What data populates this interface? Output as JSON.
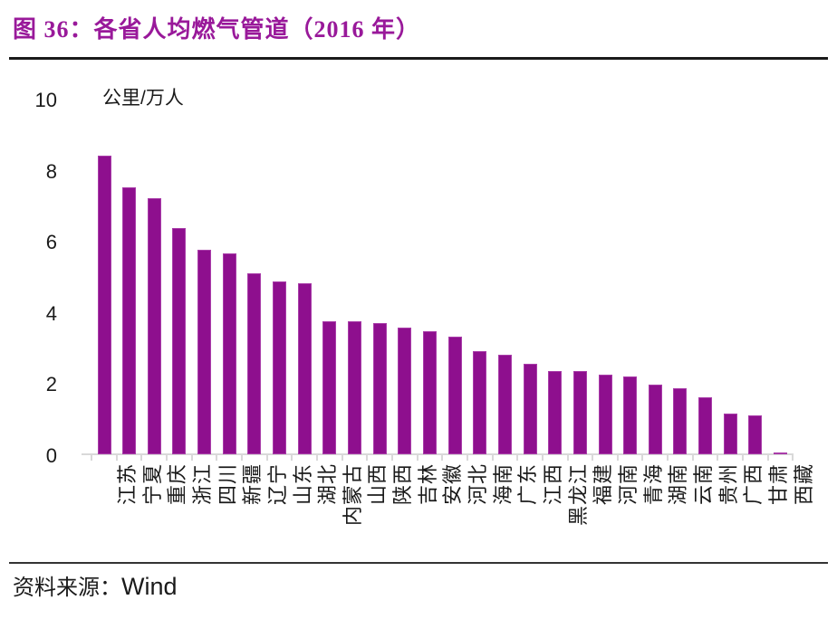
{
  "title": "图 36：各省人均燃气管道（2016 年）",
  "source": {
    "label": "资料来源：",
    "value": "Wind"
  },
  "colors": {
    "title": "#99199A",
    "bar": "#8E0F8E",
    "bar_border": "#A93DA9",
    "axis": "#D9D9D9",
    "text": "#1A1A1A"
  },
  "chart_data": {
    "type": "bar",
    "title": "图 36：各省人均燃气管道（2016 年）",
    "unit_label": "公里/万人",
    "xlabel": "",
    "ylabel": "公里/万人",
    "ylim": [
      0,
      10
    ],
    "yticks": [
      0,
      2,
      4,
      6,
      8,
      10
    ],
    "grid": false,
    "legend": false,
    "bar_color": "#8E0F8E",
    "categories": [
      "江苏",
      "宁夏",
      "重庆",
      "浙江",
      "四川",
      "新疆",
      "辽宁",
      "山东",
      "湖北",
      "内蒙古",
      "山西",
      "陕西",
      "吉林",
      "安徽",
      "河北",
      "海南",
      "广东",
      "江西",
      "黑龙江",
      "福建",
      "河南",
      "青海",
      "湖南",
      "云南",
      "贵州",
      "广西",
      "甘肃",
      "西藏"
    ],
    "values": [
      8.4,
      7.5,
      7.2,
      6.35,
      5.75,
      5.65,
      5.1,
      4.85,
      4.8,
      3.75,
      3.75,
      3.7,
      3.55,
      3.45,
      3.3,
      2.9,
      2.8,
      2.55,
      2.35,
      2.35,
      2.25,
      2.2,
      1.95,
      1.85,
      1.6,
      1.15,
      1.1,
      0.05
    ]
  }
}
